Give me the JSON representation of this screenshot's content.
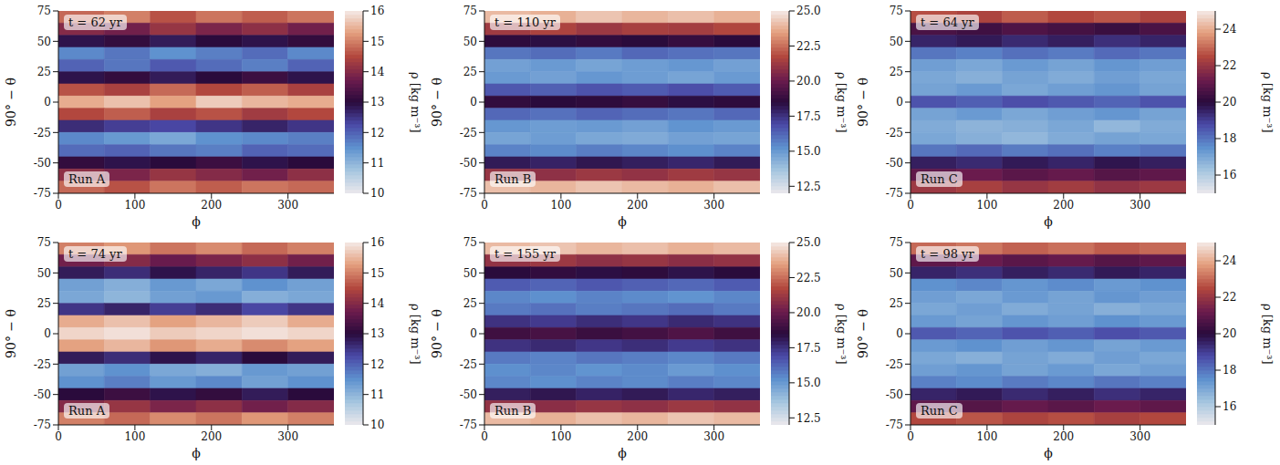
{
  "chart_data": [
    {
      "type": "heatmap",
      "annotations": [
        "t = 62 yr",
        "Run A"
      ],
      "x_label": "ϕ",
      "y_label": "90° − θ",
      "xlim": [
        0,
        360
      ],
      "xticks": [
        0,
        100,
        200,
        300
      ],
      "ylim": [
        -75,
        75
      ],
      "yticks": [
        -75,
        -50,
        -25,
        0,
        25,
        50,
        75
      ],
      "x_edges": [
        0,
        60,
        120,
        180,
        240,
        300,
        360
      ],
      "y_edges": [
        75,
        65,
        55,
        45,
        35,
        25,
        15,
        5,
        -5,
        -15,
        -25,
        -35,
        -45,
        -55,
        -65,
        -75
      ],
      "cells": [
        [
          14.8,
          15.0,
          14.6,
          14.9,
          14.7,
          14.9
        ],
        [
          14.0,
          13.8,
          14.2,
          13.9,
          14.1,
          13.8
        ],
        [
          12.9,
          13.1,
          12.8,
          13.0,
          12.9,
          13.1
        ],
        [
          11.6,
          11.8,
          11.5,
          11.7,
          11.9,
          11.6
        ],
        [
          12.0,
          11.8,
          12.1,
          11.9,
          11.7,
          12.0
        ],
        [
          12.9,
          13.1,
          12.8,
          13.0,
          13.2,
          12.9
        ],
        [
          14.6,
          14.4,
          14.8,
          14.5,
          14.7,
          14.4
        ],
        [
          15.4,
          15.6,
          15.3,
          15.7,
          15.5,
          15.4
        ],
        [
          14.5,
          14.7,
          14.4,
          14.6,
          14.3,
          14.5
        ],
        [
          12.6,
          12.4,
          12.3,
          12.5,
          12.7,
          12.5
        ],
        [
          11.6,
          11.4,
          11.2,
          11.5,
          11.6,
          11.7
        ],
        [
          11.9,
          12.0,
          11.8,
          11.7,
          12.0,
          11.9
        ],
        [
          13.1,
          12.9,
          13.0,
          13.2,
          12.9,
          13.0
        ],
        [
          14.1,
          13.9,
          14.2,
          14.0,
          13.8,
          14.1
        ],
        [
          14.8,
          14.6,
          14.9,
          14.7,
          14.9,
          14.8
        ]
      ],
      "colorbar": {
        "label": "ρ [kg m⁻³]",
        "range": [
          10,
          16
        ],
        "ticks": [
          10,
          11,
          12,
          13,
          14,
          15,
          16
        ]
      }
    },
    {
      "type": "heatmap",
      "annotations": [
        "t = 110 yr",
        "Run B"
      ],
      "x_label": "ϕ",
      "y_label": "90° − θ",
      "xlim": [
        0,
        360
      ],
      "xticks": [
        0,
        100,
        200,
        300
      ],
      "ylim": [
        -75,
        75
      ],
      "yticks": [
        -75,
        -50,
        -25,
        0,
        25,
        50,
        75
      ],
      "x_edges": [
        0,
        60,
        120,
        180,
        240,
        300,
        360
      ],
      "y_edges": [
        75,
        65,
        55,
        45,
        35,
        25,
        15,
        5,
        -5,
        -15,
        -25,
        -35,
        -45,
        -55,
        -65,
        -75
      ],
      "cells": [
        [
          24.0,
          23.8,
          24.2,
          23.9,
          24.1,
          23.8
        ],
        [
          21.3,
          21.6,
          21.2,
          21.5,
          21.4,
          21.7
        ],
        [
          18.6,
          18.4,
          18.7,
          18.5,
          18.8,
          18.5
        ],
        [
          15.9,
          16.1,
          15.8,
          16.2,
          16.0,
          15.9
        ],
        [
          14.8,
          15.0,
          14.7,
          14.9,
          15.1,
          14.8
        ],
        [
          15.0,
          14.8,
          15.1,
          14.9,
          14.7,
          15.0
        ],
        [
          16.6,
          16.4,
          16.7,
          16.5,
          16.8,
          16.5
        ],
        [
          18.7,
          18.5,
          18.6,
          18.8,
          18.4,
          18.6
        ],
        [
          16.2,
          16.0,
          16.3,
          16.1,
          15.9,
          16.2
        ],
        [
          15.1,
          14.9,
          15.0,
          14.8,
          15.2,
          15.0
        ],
        [
          14.7,
          14.9,
          14.6,
          14.5,
          14.8,
          14.7
        ],
        [
          15.6,
          15.4,
          15.7,
          15.5,
          15.3,
          15.6
        ],
        [
          18.1,
          17.9,
          18.2,
          18.0,
          17.8,
          18.1
        ],
        [
          21.1,
          20.9,
          21.2,
          21.0,
          21.3,
          21.1
        ],
        [
          24.1,
          23.9,
          24.2,
          24.0,
          23.8,
          24.1
        ]
      ],
      "colorbar": {
        "label": "ρ [kg m⁻³]",
        "range": [
          12,
          25
        ],
        "ticks": [
          12.5,
          {
            "value": 15,
            "label": "15.0"
          },
          17.5,
          {
            "value": 20,
            "label": "20.0"
          },
          22.5,
          {
            "value": 25,
            "label": "25.0"
          }
        ]
      }
    },
    {
      "type": "heatmap",
      "annotations": [
        "t = 64 yr",
        "Run C"
      ],
      "x_label": "ϕ",
      "y_label": "90° − θ",
      "xlim": [
        0,
        360
      ],
      "xticks": [
        0,
        100,
        200,
        300
      ],
      "ylim": [
        -75,
        75
      ],
      "yticks": [
        -75,
        -50,
        -25,
        0,
        25,
        50,
        75
      ],
      "x_edges": [
        0,
        60,
        120,
        180,
        240,
        300,
        360
      ],
      "y_edges": [
        75,
        65,
        55,
        45,
        35,
        25,
        15,
        5,
        -5,
        -15,
        -25,
        -35,
        -45,
        -55,
        -65,
        -75
      ],
      "cells": [
        [
          22.6,
          22.4,
          22.8,
          22.5,
          22.7,
          22.4
        ],
        [
          20.6,
          20.4,
          20.7,
          20.5,
          20.3,
          20.6
        ],
        [
          19.5,
          19.7,
          19.4,
          19.6,
          19.3,
          19.5
        ],
        [
          18.0,
          17.8,
          18.1,
          17.9,
          18.2,
          18.0
        ],
        [
          17.2,
          17.0,
          17.3,
          17.1,
          17.4,
          17.2
        ],
        [
          17.0,
          16.8,
          17.1,
          16.9,
          17.2,
          17.0
        ],
        [
          17.1,
          17.3,
          17.0,
          17.2,
          17.4,
          17.1
        ],
        [
          18.6,
          18.4,
          18.7,
          18.5,
          18.3,
          18.6
        ],
        [
          17.1,
          17.3,
          17.0,
          17.2,
          17.4,
          17.1
        ],
        [
          16.9,
          16.7,
          16.8,
          17.0,
          16.6,
          16.9
        ],
        [
          17.0,
          16.8,
          16.6,
          16.9,
          17.1,
          17.0
        ],
        [
          18.0,
          18.2,
          17.9,
          18.1,
          17.8,
          18.0
        ],
        [
          19.6,
          19.4,
          19.7,
          19.5,
          19.8,
          19.6
        ],
        [
          21.0,
          21.2,
          20.9,
          21.1,
          20.8,
          21.0
        ],
        [
          22.1,
          22.3,
          22.0,
          22.2,
          21.9,
          22.1
        ]
      ],
      "colorbar": {
        "label": "ρ [kg m⁻³]",
        "range": [
          15,
          25
        ],
        "ticks": [
          16,
          18,
          20,
          22,
          24
        ]
      }
    },
    {
      "type": "heatmap",
      "annotations": [
        "t = 74 yr",
        "Run A"
      ],
      "x_label": "ϕ",
      "y_label": "90° − θ",
      "xlim": [
        0,
        360
      ],
      "xticks": [
        0,
        100,
        200,
        300
      ],
      "ylim": [
        -75,
        75
      ],
      "yticks": [
        -75,
        -50,
        -25,
        0,
        25,
        50,
        75
      ],
      "x_edges": [
        0,
        60,
        120,
        180,
        240,
        300,
        360
      ],
      "y_edges": [
        75,
        65,
        55,
        45,
        35,
        25,
        15,
        5,
        -5,
        -15,
        -25,
        -35,
        -45,
        -55,
        -65,
        -75
      ],
      "cells": [
        [
          15.0,
          15.2,
          14.9,
          15.1,
          14.8,
          15.0
        ],
        [
          13.8,
          14.0,
          13.7,
          13.9,
          14.1,
          13.8
        ],
        [
          12.8,
          12.6,
          12.9,
          12.7,
          12.5,
          12.8
        ],
        [
          11.3,
          11.1,
          11.4,
          11.2,
          11.5,
          11.3
        ],
        [
          11.2,
          11.0,
          11.3,
          11.4,
          11.1,
          11.2
        ],
        [
          12.5,
          12.7,
          12.4,
          12.6,
          12.3,
          12.5
        ],
        [
          15.4,
          15.6,
          15.3,
          15.5,
          15.7,
          15.4
        ],
        [
          15.8,
          15.9,
          15.7,
          15.8,
          15.9,
          15.8
        ],
        [
          15.3,
          15.5,
          15.2,
          15.4,
          15.1,
          15.3
        ],
        [
          12.8,
          12.6,
          12.9,
          12.7,
          13.0,
          12.8
        ],
        [
          11.3,
          11.5,
          11.2,
          11.1,
          11.4,
          11.3
        ],
        [
          11.5,
          11.7,
          11.4,
          11.6,
          11.3,
          11.5
        ],
        [
          13.0,
          13.2,
          12.9,
          13.1,
          12.8,
          13.0
        ],
        [
          14.0,
          14.2,
          13.9,
          14.1,
          13.8,
          14.0
        ],
        [
          15.0,
          14.8,
          15.1,
          14.9,
          15.2,
          15.0
        ]
      ],
      "colorbar": {
        "label": "ρ [kg m⁻³]",
        "range": [
          10,
          16
        ],
        "ticks": [
          10,
          11,
          12,
          13,
          14,
          15,
          16
        ]
      }
    },
    {
      "type": "heatmap",
      "annotations": [
        "t = 155 yr",
        "Run B"
      ],
      "x_label": "ϕ",
      "y_label": "90° − θ",
      "xlim": [
        0,
        360
      ],
      "xticks": [
        0,
        100,
        200,
        300
      ],
      "ylim": [
        -75,
        75
      ],
      "yticks": [
        -75,
        -50,
        -25,
        0,
        25,
        50,
        75
      ],
      "x_edges": [
        0,
        60,
        120,
        180,
        240,
        300,
        360
      ],
      "y_edges": [
        75,
        65,
        55,
        45,
        35,
        25,
        15,
        5,
        -5,
        -15,
        -25,
        -35,
        -45,
        -55,
        -65,
        -75
      ],
      "cells": [
        [
          24.0,
          24.2,
          23.9,
          24.1,
          23.8,
          24.0
        ],
        [
          21.0,
          21.2,
          20.9,
          21.1,
          20.8,
          21.0
        ],
        [
          18.5,
          18.7,
          18.4,
          18.6,
          18.3,
          18.5
        ],
        [
          16.5,
          16.3,
          16.6,
          16.4,
          16.2,
          16.5
        ],
        [
          15.5,
          15.3,
          15.6,
          15.4,
          15.2,
          15.5
        ],
        [
          15.8,
          16.0,
          15.7,
          15.9,
          16.1,
          15.8
        ],
        [
          17.5,
          17.3,
          17.6,
          17.4,
          17.7,
          17.5
        ],
        [
          19.0,
          19.2,
          18.9,
          19.1,
          19.4,
          19.0
        ],
        [
          17.5,
          17.7,
          17.4,
          17.6,
          17.3,
          17.5
        ],
        [
          15.8,
          15.6,
          15.9,
          15.7,
          15.5,
          15.8
        ],
        [
          15.3,
          15.5,
          15.2,
          15.4,
          15.0,
          15.3
        ],
        [
          15.5,
          15.3,
          15.6,
          15.4,
          15.7,
          15.5
        ],
        [
          18.0,
          18.2,
          17.9,
          18.1,
          17.8,
          18.0
        ],
        [
          21.0,
          20.8,
          21.1,
          20.9,
          21.2,
          21.0
        ],
        [
          24.0,
          23.8,
          24.1,
          23.9,
          24.2,
          24.0
        ]
      ],
      "colorbar": {
        "label": "ρ [kg m⁻³]",
        "range": [
          12,
          25
        ],
        "ticks": [
          12.5,
          {
            "value": 15,
            "label": "15.0"
          },
          17.5,
          {
            "value": 20,
            "label": "20.0"
          },
          22.5,
          {
            "value": 25,
            "label": "25.0"
          }
        ]
      }
    },
    {
      "type": "heatmap",
      "annotations": [
        "t = 98 yr",
        "Run C"
      ],
      "x_label": "ϕ",
      "y_label": "90° − θ",
      "xlim": [
        0,
        360
      ],
      "xticks": [
        0,
        100,
        200,
        300
      ],
      "ylim": [
        -75,
        75
      ],
      "yticks": [
        -75,
        -50,
        -25,
        0,
        25,
        50,
        75
      ],
      "x_edges": [
        0,
        60,
        120,
        180,
        240,
        300,
        360
      ],
      "y_edges": [
        75,
        65,
        55,
        45,
        35,
        25,
        15,
        5,
        -5,
        -15,
        -25,
        -35,
        -45,
        -55,
        -65,
        -75
      ],
      "cells": [
        [
          23.0,
          23.2,
          22.9,
          23.1,
          22.8,
          23.0
        ],
        [
          21.0,
          21.2,
          20.9,
          21.1,
          20.8,
          21.0
        ],
        [
          19.5,
          19.3,
          19.6,
          19.4,
          19.7,
          19.5
        ],
        [
          17.5,
          17.7,
          17.4,
          17.6,
          17.3,
          17.5
        ],
        [
          17.2,
          17.0,
          17.3,
          17.1,
          17.4,
          17.2
        ],
        [
          17.0,
          17.2,
          16.9,
          17.1,
          16.8,
          17.0
        ],
        [
          17.3,
          17.1,
          17.4,
          17.2,
          17.5,
          17.3
        ],
        [
          18.5,
          18.3,
          18.6,
          18.4,
          18.7,
          18.5
        ],
        [
          17.3,
          17.5,
          17.2,
          17.4,
          17.1,
          17.3
        ],
        [
          17.0,
          16.8,
          17.1,
          16.9,
          17.2,
          17.0
        ],
        [
          17.2,
          17.4,
          17.1,
          17.3,
          17.0,
          17.2
        ],
        [
          17.8,
          17.6,
          17.9,
          17.7,
          18.0,
          17.8
        ],
        [
          19.5,
          19.7,
          19.4,
          19.6,
          19.3,
          19.5
        ],
        [
          21.0,
          20.8,
          21.1,
          20.9,
          21.2,
          21.0
        ],
        [
          22.5,
          22.7,
          22.4,
          22.6,
          22.3,
          22.5
        ]
      ],
      "colorbar": {
        "label": "ρ [kg m⁻³]",
        "range": [
          15,
          25
        ],
        "ticks": [
          16,
          18,
          20,
          22,
          24
        ]
      }
    }
  ]
}
